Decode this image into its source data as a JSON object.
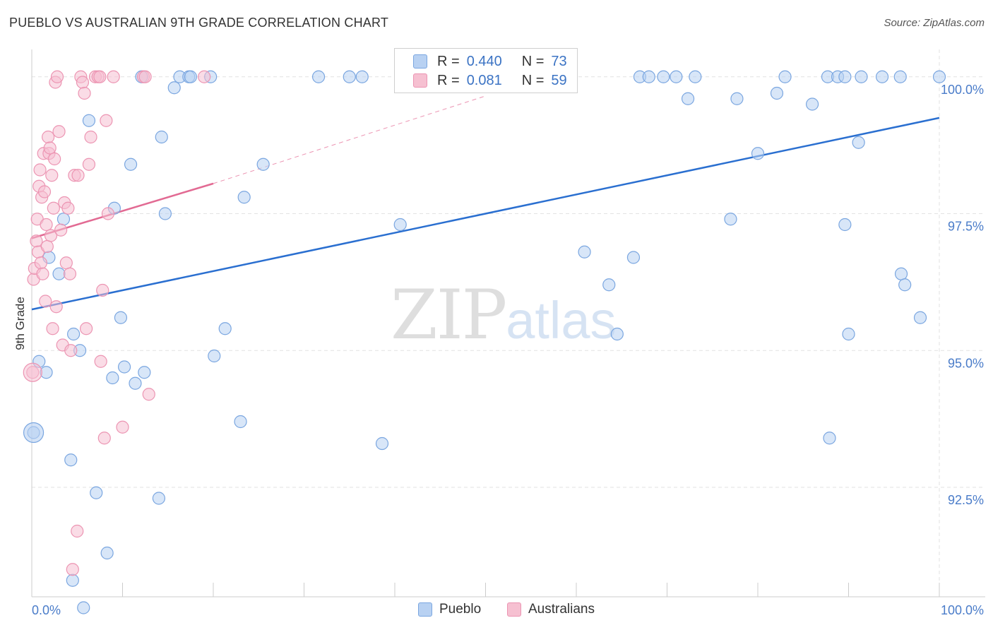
{
  "header": {
    "title": "PUEBLO VS AUSTRALIAN 9TH GRADE CORRELATION CHART",
    "source": "Source: ZipAtlas.com"
  },
  "legend": {
    "r_label": "R =",
    "n_label": "N =",
    "rows": [
      {
        "name": "Pueblo",
        "r": "0.440",
        "n": "73"
      },
      {
        "name": "Australians",
        "r": "0.081",
        "n": "59"
      }
    ]
  },
  "watermark": {
    "zip": "ZIP",
    "atlas": "atlas"
  },
  "colors": {
    "blue_fill": "#b8d1f2",
    "blue_stroke": "#7aa6e0",
    "blue_line": "#2a6fd0",
    "pink_fill": "#f6c0d1",
    "pink_stroke": "#ec94b2",
    "pink_line": "#e26a93",
    "grid": "#e2e2e2",
    "tick_text": "#4a7cc9"
  },
  "chart_data": {
    "type": "scatter",
    "title": "PUEBLO VS AUSTRALIAN 9TH GRADE CORRELATION CHART",
    "xlabel": "",
    "ylabel": "9th Grade",
    "xlim": [
      0,
      100
    ],
    "ylim": [
      90.5,
      100.5
    ],
    "x_tick_labels": [
      "0.0%",
      "100.0%"
    ],
    "y_ticks": [
      {
        "value": 100.0,
        "label": "100.0%"
      },
      {
        "value": 97.5,
        "label": "97.5%"
      },
      {
        "value": 95.0,
        "label": "95.0%"
      },
      {
        "value": 92.5,
        "label": "92.5%"
      }
    ],
    "grid": true,
    "series": [
      {
        "name": "Pueblo",
        "points": [
          [
            0.2,
            93.5
          ],
          [
            0.8,
            94.8
          ],
          [
            1.6,
            94.6
          ],
          [
            1.9,
            96.7
          ],
          [
            3.0,
            96.4
          ],
          [
            3.5,
            97.4
          ],
          [
            4.3,
            93.0
          ],
          [
            4.5,
            90.8
          ],
          [
            4.6,
            95.3
          ],
          [
            5.3,
            95.0
          ],
          [
            5.7,
            90.3
          ],
          [
            6.3,
            99.2
          ],
          [
            7.1,
            92.4
          ],
          [
            8.3,
            91.3
          ],
          [
            8.9,
            94.5
          ],
          [
            9.1,
            97.6
          ],
          [
            9.8,
            95.6
          ],
          [
            10.2,
            94.7
          ],
          [
            10.9,
            98.4
          ],
          [
            11.4,
            94.4
          ],
          [
            12.1,
            100.0
          ],
          [
            12.4,
            94.6
          ],
          [
            14.0,
            92.3
          ],
          [
            14.3,
            98.9
          ],
          [
            14.7,
            97.5
          ],
          [
            15.7,
            99.8
          ],
          [
            16.3,
            100.0
          ],
          [
            17.3,
            100.0
          ],
          [
            17.5,
            100.0
          ],
          [
            19.7,
            100.0
          ],
          [
            20.1,
            94.9
          ],
          [
            21.3,
            95.4
          ],
          [
            23.0,
            93.7
          ],
          [
            23.4,
            97.8
          ],
          [
            25.5,
            98.4
          ],
          [
            31.6,
            100.0
          ],
          [
            35.0,
            100.0
          ],
          [
            36.4,
            100.0
          ],
          [
            38.6,
            93.3
          ],
          [
            40.6,
            97.3
          ],
          [
            41.7,
            100.0
          ],
          [
            45.0,
            100.0
          ],
          [
            46.3,
            100.0
          ],
          [
            60.9,
            96.8
          ],
          [
            63.6,
            96.2
          ],
          [
            64.5,
            95.3
          ],
          [
            66.3,
            96.7
          ],
          [
            67.0,
            100.0
          ],
          [
            68.0,
            100.0
          ],
          [
            69.6,
            100.0
          ],
          [
            71.0,
            100.0
          ],
          [
            72.3,
            99.6
          ],
          [
            73.1,
            100.0
          ],
          [
            77.0,
            97.4
          ],
          [
            77.7,
            99.6
          ],
          [
            80.0,
            98.6
          ],
          [
            82.1,
            99.7
          ],
          [
            83.0,
            100.0
          ],
          [
            86.0,
            99.5
          ],
          [
            87.7,
            100.0
          ],
          [
            87.9,
            93.4
          ],
          [
            88.8,
            100.0
          ],
          [
            89.6,
            100.0
          ],
          [
            89.6,
            97.3
          ],
          [
            90.0,
            95.3
          ],
          [
            91.1,
            98.8
          ],
          [
            91.4,
            100.0
          ],
          [
            93.7,
            100.0
          ],
          [
            95.7,
            100.0
          ],
          [
            95.8,
            96.4
          ],
          [
            96.2,
            96.2
          ],
          [
            97.9,
            95.6
          ],
          [
            100.0,
            100.0
          ]
        ],
        "trendline": [
          [
            0,
            95.75
          ],
          [
            100,
            99.25
          ]
        ]
      },
      {
        "name": "Australians",
        "points": [
          [
            0.1,
            94.6
          ],
          [
            0.2,
            96.3
          ],
          [
            0.3,
            96.5
          ],
          [
            0.5,
            97.0
          ],
          [
            0.6,
            97.4
          ],
          [
            0.7,
            96.8
          ],
          [
            0.8,
            98.0
          ],
          [
            0.9,
            98.3
          ],
          [
            1.0,
            96.6
          ],
          [
            1.1,
            97.8
          ],
          [
            1.2,
            96.4
          ],
          [
            1.3,
            98.6
          ],
          [
            1.4,
            97.9
          ],
          [
            1.5,
            95.9
          ],
          [
            1.6,
            97.3
          ],
          [
            1.7,
            96.9
          ],
          [
            1.8,
            98.9
          ],
          [
            1.9,
            98.6
          ],
          [
            2.0,
            98.7
          ],
          [
            2.1,
            97.1
          ],
          [
            2.2,
            98.2
          ],
          [
            2.3,
            95.4
          ],
          [
            2.4,
            97.6
          ],
          [
            2.5,
            98.5
          ],
          [
            2.6,
            99.9
          ],
          [
            2.7,
            95.8
          ],
          [
            2.8,
            100.0
          ],
          [
            3.0,
            99.0
          ],
          [
            3.2,
            97.2
          ],
          [
            3.4,
            95.1
          ],
          [
            3.6,
            97.7
          ],
          [
            3.8,
            96.6
          ],
          [
            4.0,
            97.6
          ],
          [
            4.2,
            96.4
          ],
          [
            4.3,
            95.0
          ],
          [
            4.5,
            91.0
          ],
          [
            4.7,
            98.2
          ],
          [
            5.0,
            91.7
          ],
          [
            5.1,
            98.2
          ],
          [
            5.4,
            100.0
          ],
          [
            5.6,
            99.9
          ],
          [
            5.8,
            99.7
          ],
          [
            6.0,
            95.4
          ],
          [
            6.3,
            98.4
          ],
          [
            6.5,
            98.9
          ],
          [
            7.0,
            100.0
          ],
          [
            7.3,
            100.0
          ],
          [
            7.5,
            100.0
          ],
          [
            7.6,
            94.8
          ],
          [
            7.8,
            96.1
          ],
          [
            8.0,
            93.4
          ],
          [
            8.2,
            99.2
          ],
          [
            8.4,
            97.5
          ],
          [
            9.0,
            100.0
          ],
          [
            10.0,
            93.6
          ],
          [
            12.3,
            100.0
          ],
          [
            12.5,
            100.0
          ],
          [
            12.9,
            94.2
          ],
          [
            19.0,
            100.0
          ]
        ],
        "trendline": [
          [
            0,
            97.05
          ],
          [
            20,
            98.05
          ]
        ],
        "trendline_extension": [
          [
            20,
            98.05
          ],
          [
            50,
            99.65
          ]
        ]
      }
    ]
  }
}
